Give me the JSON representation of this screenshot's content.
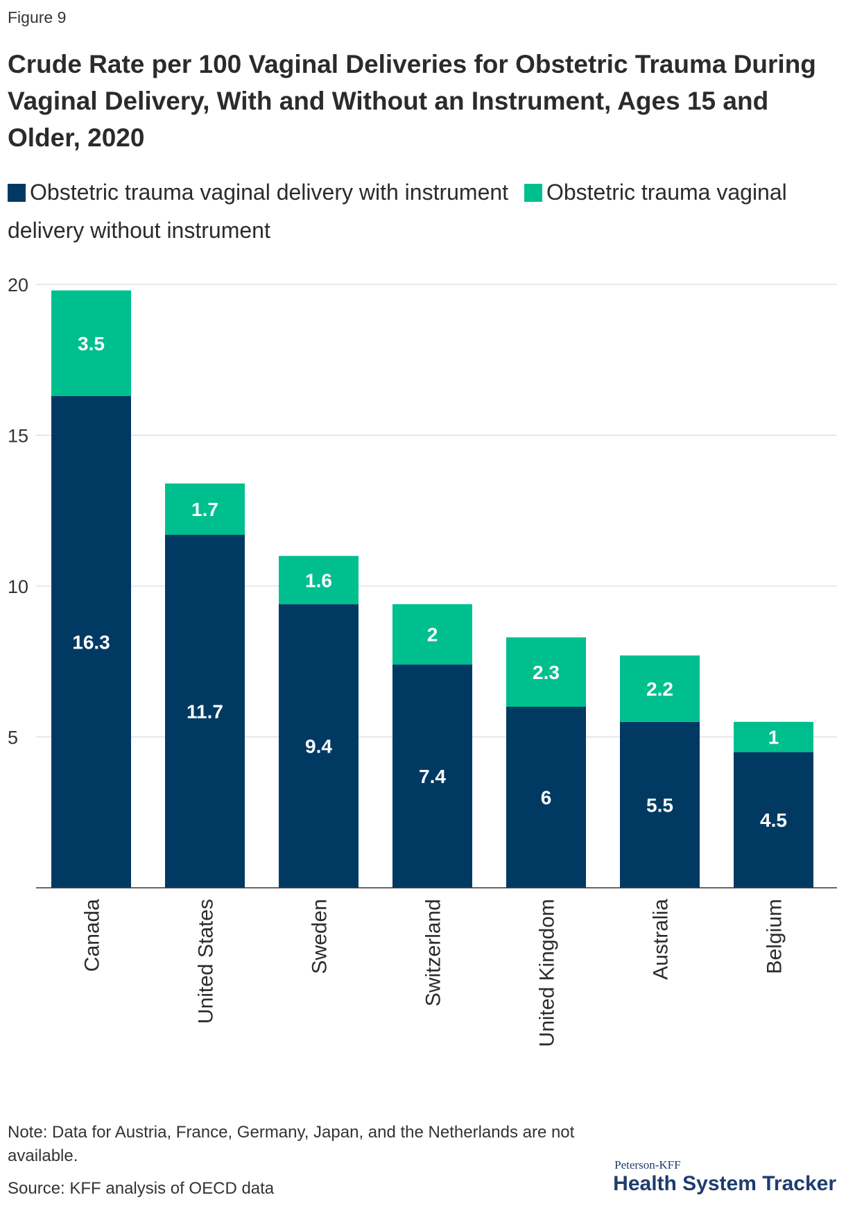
{
  "figure_label": "Figure 9",
  "title": "Crude Rate per 100 Vaginal Deliveries for Obstetric Trauma During Vaginal Delivery, With and Without an Instrument, Ages 15 and Older, 2020",
  "chart_data": {
    "type": "bar",
    "stacked": true,
    "categories": [
      "Canada",
      "United States",
      "Sweden",
      "Switzerland",
      "United Kingdom",
      "Australia",
      "Belgium"
    ],
    "series": [
      {
        "name": "Obstetric trauma vaginal delivery with instrument",
        "color": "#003a63",
        "values": [
          16.3,
          11.7,
          9.4,
          7.4,
          6,
          5.5,
          4.5
        ]
      },
      {
        "name": "Obstetric trauma vaginal delivery without instrument",
        "color": "#00bf8f",
        "values": [
          3.5,
          1.7,
          1.6,
          2,
          2.3,
          2.2,
          1
        ]
      }
    ],
    "yticks": [
      5,
      10,
      15,
      20
    ],
    "ylim": [
      0,
      20
    ],
    "grid": true,
    "legend_position": "top"
  },
  "note": "Note: Data for Austria, France, Germany, Japan, and the Netherlands are not available.",
  "source": "Source: KFF analysis of OECD data",
  "logo": {
    "top": "Peterson-KFF",
    "main": "Health System Tracker"
  }
}
